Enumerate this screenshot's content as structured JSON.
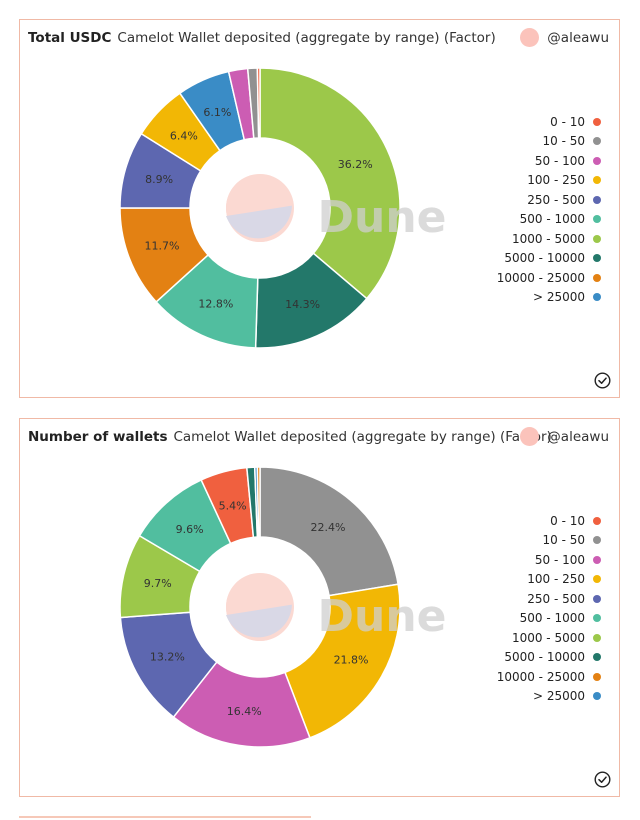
{
  "panels": [
    {
      "title": "Total USDC",
      "subtitle": "Camelot Wallet deposited (aggregate by range) (Factor)",
      "author": "@aleawu",
      "watermark": "Dune",
      "check_icon": "check-circle-icon"
    },
    {
      "title": "Number of wallets",
      "subtitle": "Camelot Wallet deposited (aggregate by range) (Factor)",
      "author": "@aleawu",
      "watermark": "Dune",
      "check_icon": "check-circle-icon"
    }
  ],
  "colors": {
    "0 - 10": "#f0603f",
    "10 - 50": "#919191",
    "50 - 100": "#cc5db3",
    "100 - 250": "#f2b705",
    "250 - 500": "#5d67b0",
    "500 - 1000": "#51be9f",
    "1000 - 5000": "#9cc84a",
    "5000 - 10000": "#23786a",
    "10000 - 25000": "#e38113",
    "> 25000": "#3a8cc6"
  },
  "chart_data": [
    {
      "type": "pie",
      "title": "Total USDC",
      "legend_position": "right",
      "categories": [
        "0 - 10",
        "10 - 50",
        "50 - 100",
        "100 - 250",
        "250 - 500",
        "500 - 1000",
        "1000 - 5000",
        "5000 - 10000",
        "10000 - 25000",
        "> 25000"
      ],
      "slices": [
        {
          "label": "1000 - 5000",
          "value": 36.2,
          "text": "36.2%"
        },
        {
          "label": "5000 - 10000",
          "value": 14.3,
          "text": "14.3%"
        },
        {
          "label": "500 - 1000",
          "value": 12.8,
          "text": "12.8%"
        },
        {
          "label": "10000 - 25000",
          "value": 11.7,
          "text": "11.7%"
        },
        {
          "label": "250 - 500",
          "value": 8.9,
          "text": "8.9%"
        },
        {
          "label": "100 - 250",
          "value": 6.4,
          "text": "6.4%"
        },
        {
          "label": "> 25000",
          "value": 6.1,
          "text": "6.1%"
        },
        {
          "label": "50 - 100",
          "value": 2.2,
          "text": ""
        },
        {
          "label": "10 - 50",
          "value": 1.1,
          "text": ""
        },
        {
          "label": "0 - 10",
          "value": 0.3,
          "text": ""
        }
      ]
    },
    {
      "type": "pie",
      "title": "Number of wallets",
      "legend_position": "right",
      "categories": [
        "0 - 10",
        "10 - 50",
        "50 - 100",
        "100 - 250",
        "250 - 500",
        "500 - 1000",
        "1000 - 5000",
        "5000 - 10000",
        "10000 - 25000",
        "> 25000"
      ],
      "slices": [
        {
          "label": "10 - 50",
          "value": 22.4,
          "text": "22.4%"
        },
        {
          "label": "100 - 250",
          "value": 21.8,
          "text": "21.8%"
        },
        {
          "label": "50 - 100",
          "value": 16.4,
          "text": "16.4%"
        },
        {
          "label": "250 - 500",
          "value": 13.2,
          "text": "13.2%"
        },
        {
          "label": "1000 - 5000",
          "value": 9.7,
          "text": "9.7%"
        },
        {
          "label": "500 - 1000",
          "value": 9.6,
          "text": "9.6%"
        },
        {
          "label": "0 - 10",
          "value": 5.4,
          "text": "5.4%"
        },
        {
          "label": "5000 - 10000",
          "value": 0.9,
          "text": ""
        },
        {
          "label": "> 25000",
          "value": 0.3,
          "text": ""
        },
        {
          "label": "10000 - 25000",
          "value": 0.3,
          "text": ""
        }
      ]
    }
  ]
}
